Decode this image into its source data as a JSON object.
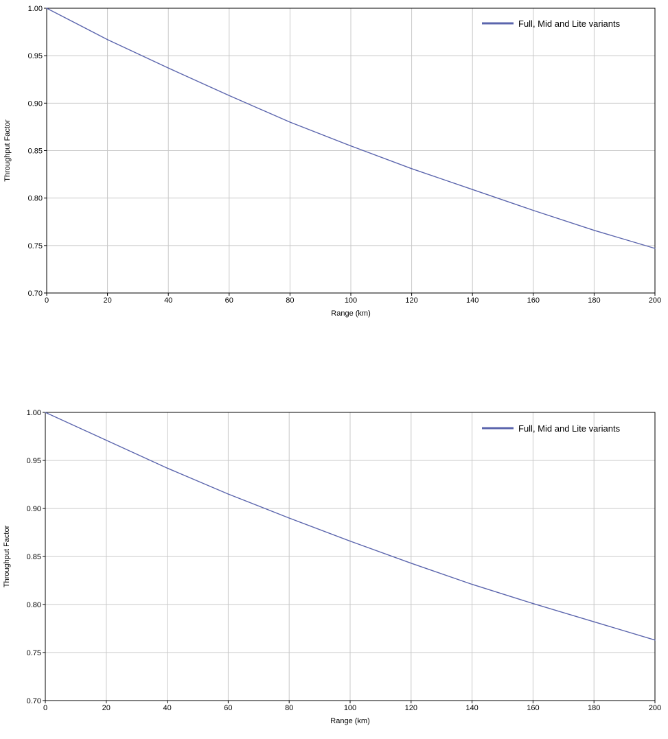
{
  "chart_data": [
    {
      "type": "line",
      "xlabel": "Range (km)",
      "ylabel": "Throughput Factor",
      "xlim": [
        0,
        200
      ],
      "ylim": [
        0.7,
        1.0
      ],
      "xticks": [
        "0",
        "20",
        "40",
        "60",
        "80",
        "100",
        "120",
        "140",
        "160",
        "180",
        "200"
      ],
      "yticks": [
        "0.70",
        "0.75",
        "0.80",
        "0.85",
        "0.90",
        "0.95",
        "1.00"
      ],
      "grid": true,
      "legend_position": "top-right",
      "series": [
        {
          "name": "Full, Mid and Lite variants",
          "color": "#5b65ad",
          "x": [
            0,
            20,
            40,
            60,
            80,
            100,
            120,
            140,
            160,
            180,
            200
          ],
          "y": [
            1.0,
            0.967,
            0.937,
            0.908,
            0.88,
            0.855,
            0.831,
            0.809,
            0.787,
            0.766,
            0.747
          ]
        }
      ]
    },
    {
      "type": "line",
      "xlabel": "Range (km)",
      "ylabel": "Throughput Factor",
      "xlim": [
        0,
        200
      ],
      "ylim": [
        0.7,
        1.0
      ],
      "xticks": [
        "0",
        "20",
        "40",
        "60",
        "80",
        "100",
        "120",
        "140",
        "160",
        "180",
        "200"
      ],
      "yticks": [
        "0.70",
        "0.75",
        "0.80",
        "0.85",
        "0.90",
        "0.95",
        "1.00"
      ],
      "grid": true,
      "legend_position": "top-right",
      "series": [
        {
          "name": "Full, Mid and Lite variants",
          "color": "#5b65ad",
          "x": [
            0,
            20,
            40,
            60,
            80,
            100,
            120,
            140,
            160,
            180,
            200
          ],
          "y": [
            1.0,
            0.971,
            0.942,
            0.915,
            0.89,
            0.866,
            0.843,
            0.821,
            0.801,
            0.782,
            0.763
          ]
        }
      ]
    }
  ]
}
